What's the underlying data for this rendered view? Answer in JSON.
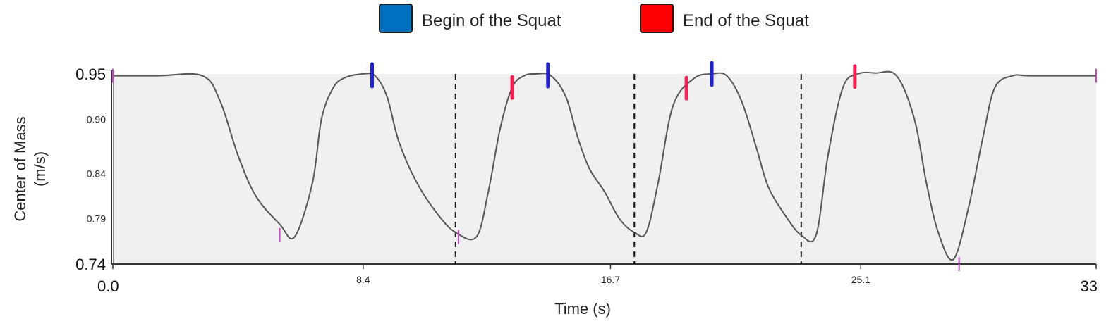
{
  "chart_data": {
    "type": "line",
    "xlabel": "Time (s)",
    "ylabel_line1": "Center of Mass",
    "ylabel_line2": "(m/s)",
    "xlim": [
      0,
      33
    ],
    "ylim": [
      0.74,
      0.95
    ],
    "x_ticks": [
      {
        "value": 0.0,
        "label": "0.0",
        "major": true
      },
      {
        "value": 8.4,
        "label": "8.4",
        "major": false
      },
      {
        "value": 16.7,
        "label": "16.7",
        "major": false
      },
      {
        "value": 25.1,
        "label": "25.1",
        "major": false
      },
      {
        "value": 33,
        "label": "33",
        "major": true
      }
    ],
    "y_ticks": [
      {
        "value": 0.95,
        "label": "0.95",
        "major": true
      },
      {
        "value": 0.9,
        "label": "0.90",
        "major": false
      },
      {
        "value": 0.84,
        "label": "0.84",
        "major": false
      },
      {
        "value": 0.79,
        "label": "0.79",
        "major": false
      },
      {
        "value": 0.74,
        "label": "0.74",
        "major": true
      }
    ],
    "legend": [
      {
        "label": "Begin of the Squat",
        "color": "#0070c0"
      },
      {
        "label": "End of the Squat",
        "color": "#ff0000"
      }
    ],
    "legend_position": "top-center",
    "series": [
      {
        "x": [
          0,
          1.5,
          3.0,
          3.6,
          4.2,
          4.8,
          5.6,
          6.1,
          6.7,
          7.0,
          7.4,
          7.8,
          8.4,
          8.8,
          9.2,
          9.6,
          10.2,
          10.9,
          11.5,
          12.2,
          12.6,
          13.0,
          13.4,
          13.8,
          14.2,
          14.7,
          15.2,
          15.6,
          16.0,
          16.5,
          17.0,
          17.5,
          17.9,
          18.3,
          18.8,
          19.5,
          20.1,
          20.6,
          21.1,
          21.6,
          22.0,
          22.6,
          23.1,
          23.6,
          24.0,
          24.5,
          25.0,
          25.6,
          26.3,
          26.9,
          27.3,
          27.7,
          28.2,
          28.7,
          29.2,
          29.6,
          30.2,
          30.8,
          33
        ],
        "values": [
          0.948,
          0.948,
          0.948,
          0.92,
          0.86,
          0.815,
          0.784,
          0.77,
          0.83,
          0.9,
          0.935,
          0.946,
          0.95,
          0.948,
          0.925,
          0.875,
          0.83,
          0.795,
          0.775,
          0.77,
          0.82,
          0.89,
          0.935,
          0.948,
          0.95,
          0.948,
          0.925,
          0.88,
          0.845,
          0.82,
          0.79,
          0.775,
          0.775,
          0.83,
          0.915,
          0.945,
          0.95,
          0.948,
          0.92,
          0.868,
          0.825,
          0.792,
          0.772,
          0.772,
          0.86,
          0.935,
          0.95,
          0.951,
          0.948,
          0.9,
          0.83,
          0.775,
          0.745,
          0.8,
          0.88,
          0.935,
          0.948,
          0.948,
          0.948
        ]
      }
    ],
    "vertical_dashed_lines": [
      11.5,
      17.5,
      23.1
    ],
    "begin_markers": [
      8.7,
      14.6,
      20.1
    ],
    "end_markers": [
      13.4,
      19.25,
      24.9
    ],
    "extremum_ticks": [
      {
        "x": 0,
        "y": 0.948
      },
      {
        "x": 5.6,
        "y": 0.772
      },
      {
        "x": 11.6,
        "y": 0.77
      },
      {
        "x": 28.4,
        "y": 0.74
      },
      {
        "x": 33,
        "y": 0.948
      }
    ],
    "colors": {
      "plot_bg": "#f0f0f0",
      "line": "#555555",
      "tick_mark": "#cc44cc",
      "begin": "#2222cc",
      "end": "#ee2255"
    }
  }
}
